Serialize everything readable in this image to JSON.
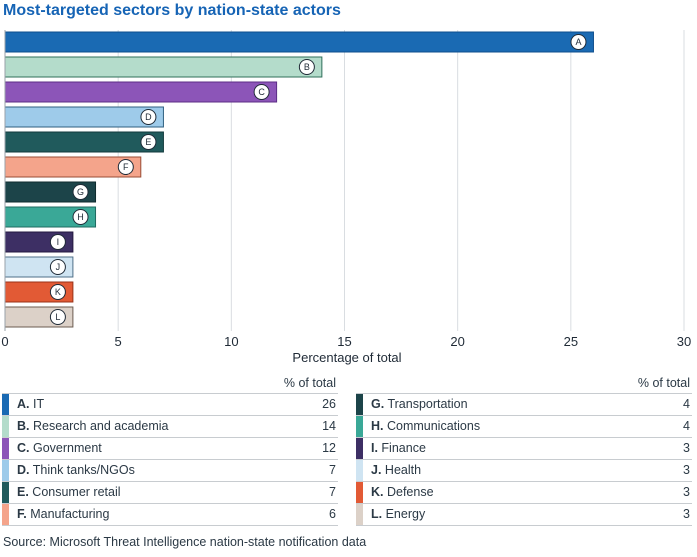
{
  "title": "Most-targeted sectors by nation-state actors",
  "source": "Source: Microsoft Threat Intelligence nation-state notification data",
  "legend_header": "% of total",
  "chart_data": {
    "type": "bar",
    "orientation": "horizontal",
    "title": "Most-targeted sectors by nation-state actors",
    "xlabel": "Percentage of total",
    "xlim": [
      0,
      30
    ],
    "xticks": [
      "0",
      "5",
      "10",
      "15",
      "20",
      "25",
      "30"
    ],
    "grid": true,
    "categories": [
      {
        "letter": "A",
        "name": "IT",
        "value": 26,
        "display": "26",
        "color": "#1a6ab3",
        "border": "#0f4f8c"
      },
      {
        "letter": "B",
        "name": "Research and academia",
        "value": 14,
        "display": "14",
        "color": "#b4dccb",
        "border": "#2f6f5a"
      },
      {
        "letter": "C",
        "name": "Government",
        "value": 12,
        "display": "12",
        "color": "#8c55b8",
        "border": "#5c2d86"
      },
      {
        "letter": "D",
        "name": "Think tanks/NGOs",
        "value": 7,
        "display": "7",
        "color": "#9ecbea",
        "border": "#2f5f80"
      },
      {
        "letter": "E",
        "name": "Consumer retail",
        "value": 7,
        "display": "7",
        "color": "#205a5c",
        "border": "#123a3c"
      },
      {
        "letter": "F",
        "name": "Manufacturing",
        "value": 6,
        "display": "6",
        "color": "#f4a48b",
        "border": "#9a4d36"
      },
      {
        "letter": "G",
        "name": "Transportation",
        "value": 4,
        "display": "4",
        "color": "#1c4449",
        "border": "#0f2b2e"
      },
      {
        "letter": "H",
        "name": "Communications",
        "value": 4,
        "display": "4",
        "color": "#3aa897",
        "border": "#1f6b60"
      },
      {
        "letter": "I",
        "name": "Finance",
        "value": 3,
        "display": "3",
        "color": "#3d2f64",
        "border": "#241a40"
      },
      {
        "letter": "J",
        "name": "Health",
        "value": 3,
        "display": "3",
        "color": "#cfe4f2",
        "border": "#4f6f88"
      },
      {
        "letter": "K",
        "name": "Defense",
        "value": 3,
        "display": "3",
        "color": "#e25a35",
        "border": "#9a3218"
      },
      {
        "letter": "L",
        "name": "Energy",
        "value": 3,
        "display": "3",
        "color": "#dcd1c8",
        "border": "#6b5c50"
      }
    ]
  }
}
